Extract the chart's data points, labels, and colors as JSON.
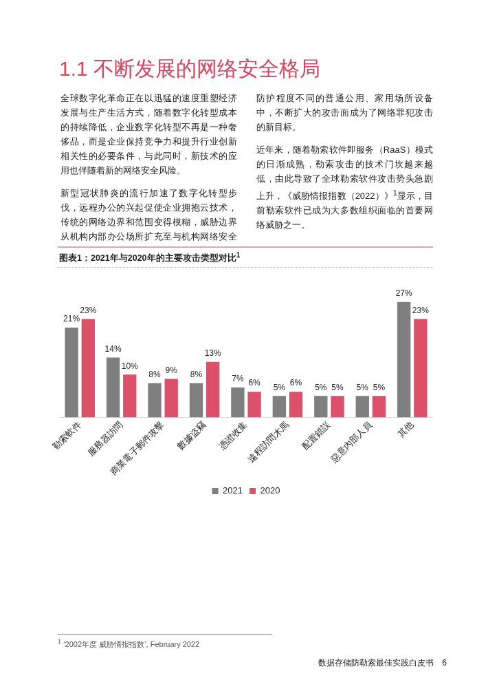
{
  "chart_data": {
    "type": "bar",
    "title": "图表1：2021年与2020年的主要攻击类型对比$^{1}$",
    "categories": [
      "勒索軟件",
      "服務器訪問",
      "商業電子郵件攻擊",
      "數據盜竊",
      "憑證收集",
      "遠程訪問木馬",
      "配置錯誤",
      "惡意內部人員",
      "其他"
    ],
    "series": [
      {
        "name": "2021",
        "color": "#7f7f7f",
        "values": [
          21,
          14,
          8,
          8,
          7,
          5,
          5,
          5,
          27
        ],
        "value_labels": [
          "21%",
          "14%",
          "8%",
          "8%",
          "7%",
          "5%",
          "5%",
          "5%",
          "27%"
        ]
      },
      {
        "name": "2020",
        "color": "#dc5069",
        "values": [
          23,
          10,
          9,
          13,
          6,
          6,
          5,
          5,
          23
        ],
        "value_labels": [
          "23%",
          "10%",
          "9%",
          "13%",
          "6%",
          "6%",
          "5%",
          "5%",
          "23%"
        ]
      }
    ],
    "tick_labels": "x",
    "grid": false,
    "legend": "bottom",
    "annotations": [
      "1.1 不断发展的网络安全格局",
      "全球数字化革命正在以迅猛的速度重塑经济发展与生产生活方式，随着数字化转型成本的持续降低，企业数字化转型不再是一种奢侈品，而是企业保持竞争力和提升行业创新相关性的必要条件，与此同时，新技术的应用也伴随着新的网络安全风险。",
      "新型冠状肺炎的流行加速了数字化转型步伐，远程办公的兴起促使企业拥抱云技术，传统的网络边界和范围变得模糊，威胁边界从机构内部办公场所扩充至与机构网络安全防护程度不同的普通公用、家用场所设备中，不断扩大的攻击面成为了网络罪犯攻击的新目标。",
      "近年来，随着勒索软件即服务（RaaS）模式的日渐成熟，勒索攻击的技术门坎越来越低，由此导致了全球勒索软件攻击势头急剧上升，《威胁情报指数（2022）》$^{1}$显示，目前勒索软件已成为大多数组织面临的首要网络威胁之一。",
      "$^{1}$ ‘2002年度 威胁情报指数’, February 2022",
      "数据存储防勒索最佳实践白皮书　6"
    ]
  }
}
